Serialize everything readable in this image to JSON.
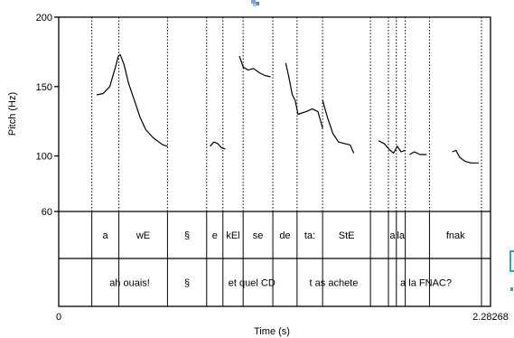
{
  "chart_data": {
    "type": "line",
    "xlabel": "Time (s)",
    "ylabel": "Pitch (Hz)",
    "xlim": [
      0,
      2.28268
    ],
    "x_tick_labels": [
      "0",
      "2.28268"
    ],
    "ylim": [
      60,
      200
    ],
    "y_ticks": [
      60,
      100,
      150,
      200
    ],
    "y_tick_labels": [
      "60",
      "100",
      "150",
      "200"
    ],
    "boundaries": [
      0.175,
      0.318,
      0.575,
      0.782,
      0.868,
      0.975,
      1.132,
      1.26,
      1.395,
      1.648,
      1.743,
      1.785,
      1.832,
      1.96,
      2.235
    ],
    "pitch_contours": [
      {
        "x": [
          0.2,
          0.235,
          0.27,
          0.3,
          0.315,
          0.325,
          0.345,
          0.37,
          0.4,
          0.43,
          0.46,
          0.5,
          0.53,
          0.55,
          0.575
        ],
        "y": [
          144,
          145,
          150,
          164,
          172,
          173,
          166,
          152,
          140,
          128,
          119,
          113,
          110,
          108,
          107
        ]
      },
      {
        "x": [
          0.8,
          0.82,
          0.84,
          0.86,
          0.88
        ],
        "y": [
          107,
          110,
          109,
          106,
          105
        ]
      },
      {
        "x": [
          0.955,
          0.975,
          1.0,
          1.03,
          1.06,
          1.09,
          1.12
        ],
        "y": [
          172,
          164,
          162,
          163,
          160,
          158,
          157
        ]
      },
      {
        "x": [
          1.2,
          1.215,
          1.235,
          1.25,
          1.265,
          1.285,
          1.31,
          1.34,
          1.37,
          1.385,
          1.395
        ],
        "y": [
          167,
          158,
          144,
          140,
          130,
          131,
          132,
          134,
          132,
          125,
          120
        ]
      },
      {
        "x": [
          1.395,
          1.42,
          1.45,
          1.48,
          1.51,
          1.54,
          1.56
        ],
        "y": [
          140,
          128,
          116,
          110,
          109,
          108,
          102
        ]
      },
      {
        "x": [
          1.69,
          1.72,
          1.745
        ],
        "y": [
          111,
          109,
          105
        ]
      },
      {
        "x": [
          1.745,
          1.77,
          1.79,
          1.81,
          1.83
        ],
        "y": [
          105,
          102,
          107,
          103,
          104
        ]
      },
      {
        "x": [
          1.855,
          1.88,
          1.91,
          1.945
        ],
        "y": [
          101,
          103,
          101,
          101
        ]
      },
      {
        "x": [
          2.08,
          2.1,
          2.12,
          2.15,
          2.18,
          2.22
        ],
        "y": [
          103,
          104,
          99,
          96,
          95,
          95
        ]
      }
    ],
    "tiers": [
      {
        "intervals": [
          {
            "start": 0.175,
            "end": 0.318,
            "label": "a"
          },
          {
            "start": 0.318,
            "end": 0.575,
            "label": "wE"
          },
          {
            "start": 0.575,
            "end": 0.782,
            "label": "§"
          },
          {
            "start": 0.782,
            "end": 0.868,
            "label": "e"
          },
          {
            "start": 0.868,
            "end": 0.975,
            "label": "kEl"
          },
          {
            "start": 0.975,
            "end": 1.132,
            "label": "se"
          },
          {
            "start": 1.132,
            "end": 1.26,
            "label": "de"
          },
          {
            "start": 1.26,
            "end": 1.395,
            "label": "ta:"
          },
          {
            "start": 1.395,
            "end": 1.648,
            "label": "StE"
          },
          {
            "start": 1.743,
            "end": 1.785,
            "label": "a"
          },
          {
            "start": 1.785,
            "end": 1.832,
            "label": "la"
          },
          {
            "start": 1.96,
            "end": 2.235,
            "label": "fnak"
          }
        ]
      },
      {
        "intervals": [
          {
            "start": 0.175,
            "end": 0.575,
            "label": "ah ouais!"
          },
          {
            "start": 0.575,
            "end": 0.782,
            "label": "§"
          },
          {
            "start": 0.782,
            "end": 1.26,
            "label": "et quel CD"
          },
          {
            "start": 1.26,
            "end": 1.648,
            "label": "t as achete"
          },
          {
            "start": 1.648,
            "end": 2.235,
            "label": "a la FNAC?"
          }
        ]
      }
    ],
    "colors": {
      "line": "#000000",
      "icon_accent": "#28a9b8"
    }
  },
  "icons": {
    "top": "app-cursor-icon",
    "right": "side-handle-icon"
  }
}
